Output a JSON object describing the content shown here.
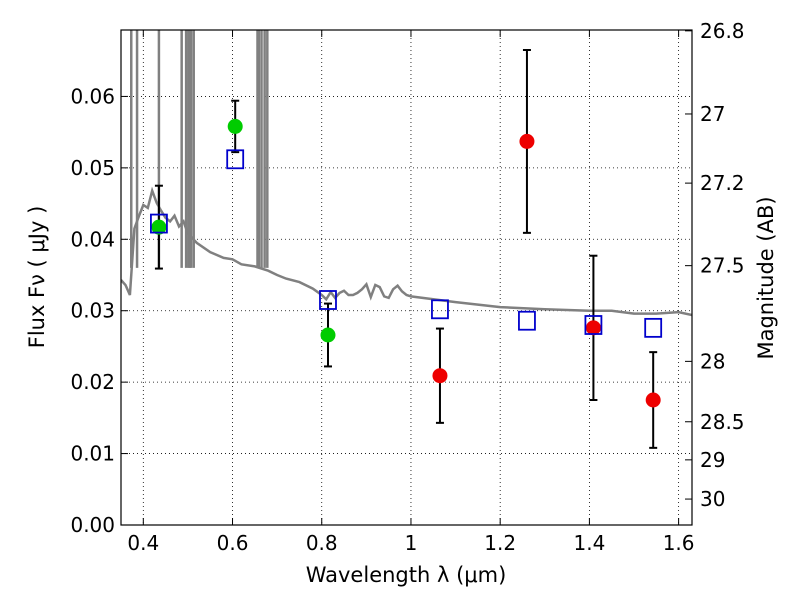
{
  "chart_data": {
    "type": "scatter",
    "xlabel": "Wavelength  λ (μm)",
    "ylabel": "Flux  Fν  ( μJy )",
    "ylabel_right": "Magnitude (AB)",
    "xlim": [
      0.35,
      1.63
    ],
    "ylim": [
      0.0,
      0.0693
    ],
    "x_ticks": [
      0.4,
      0.6,
      0.8,
      1.0,
      1.2,
      1.4,
      1.6
    ],
    "x_tick_labels": [
      "0.4",
      "0.6",
      "0.8",
      "1",
      "1.2",
      "1.4",
      "1.6"
    ],
    "y_ticks": [
      0.0,
      0.01,
      0.02,
      0.03,
      0.04,
      0.05,
      0.06
    ],
    "y_tick_labels": [
      "0.00",
      "0.01",
      "0.02",
      "0.03",
      "0.04",
      "0.05",
      "0.06"
    ],
    "right_ticks": [
      26.8,
      27,
      27.2,
      27.5,
      28,
      28.5,
      29,
      30
    ],
    "right_tick_labels": [
      "26.8",
      "27",
      "27.2",
      "27.5",
      "28",
      "28.5",
      "29",
      "30"
    ],
    "grid": true,
    "colors": {
      "model": "#808080",
      "green": "#00cc00",
      "red": "#ee0000",
      "blue": "#0000cc",
      "errorbar": "#000000"
    },
    "series": [
      {
        "name": "model spectrum",
        "kind": "line",
        "x": [
          0.35,
          0.36,
          0.37,
          0.38,
          0.39,
          0.4,
          0.41,
          0.42,
          0.43,
          0.44,
          0.45,
          0.46,
          0.47,
          0.48,
          0.49,
          0.5,
          0.52,
          0.55,
          0.58,
          0.6,
          0.62,
          0.65,
          0.68,
          0.7,
          0.72,
          0.75,
          0.78,
          0.8,
          0.81,
          0.82,
          0.83,
          0.84,
          0.85,
          0.86,
          0.87,
          0.88,
          0.89,
          0.9,
          0.91,
          0.92,
          0.93,
          0.94,
          0.95,
          0.96,
          0.97,
          0.98,
          0.99,
          1.0,
          1.05,
          1.1,
          1.2,
          1.3,
          1.4,
          1.45,
          1.5,
          1.55,
          1.6,
          1.63
        ],
        "y": [
          0.0343,
          0.0336,
          0.0322,
          0.0415,
          0.0432,
          0.0448,
          0.0444,
          0.0468,
          0.0451,
          0.044,
          0.043,
          0.0425,
          0.0433,
          0.0418,
          0.0425,
          0.0408,
          0.0395,
          0.0382,
          0.0374,
          0.0372,
          0.0365,
          0.0362,
          0.0356,
          0.035,
          0.0345,
          0.034,
          0.0331,
          0.0322,
          0.0316,
          0.0326,
          0.0318,
          0.0325,
          0.0328,
          0.0322,
          0.0322,
          0.0325,
          0.033,
          0.0337,
          0.0319,
          0.0336,
          0.0333,
          0.032,
          0.0318,
          0.033,
          0.0335,
          0.0327,
          0.0322,
          0.032,
          0.0316,
          0.0312,
          0.0305,
          0.0302,
          0.03,
          0.03,
          0.0296,
          0.0296,
          0.0298,
          0.0294
        ]
      },
      {
        "name": "model emission lines",
        "kind": "spikes",
        "x": [
          0.373,
          0.386,
          0.435,
          0.486,
          0.496,
          0.501,
          0.504,
          0.507,
          0.513,
          0.656,
          0.659,
          0.665,
          0.672,
          0.678
        ]
      },
      {
        "name": "green photometry",
        "kind": "points",
        "x": [
          0.435,
          0.606,
          0.814
        ],
        "y": [
          0.0417,
          0.0558,
          0.0266
        ],
        "yerr": [
          0.0058,
          0.0036,
          0.0044
        ]
      },
      {
        "name": "red photometry",
        "kind": "points",
        "x": [
          1.065,
          1.26,
          1.409,
          1.543
        ],
        "y": [
          0.0209,
          0.0537,
          0.0276,
          0.0175
        ],
        "yerr": [
          0.0066,
          0.0128,
          0.0101,
          0.0067
        ]
      },
      {
        "name": "model photometry",
        "kind": "squares",
        "x": [
          0.435,
          0.606,
          0.814,
          1.065,
          1.26,
          1.409,
          1.543
        ],
        "y": [
          0.0422,
          0.0512,
          0.0315,
          0.0302,
          0.0286,
          0.028,
          0.0276
        ]
      }
    ]
  }
}
